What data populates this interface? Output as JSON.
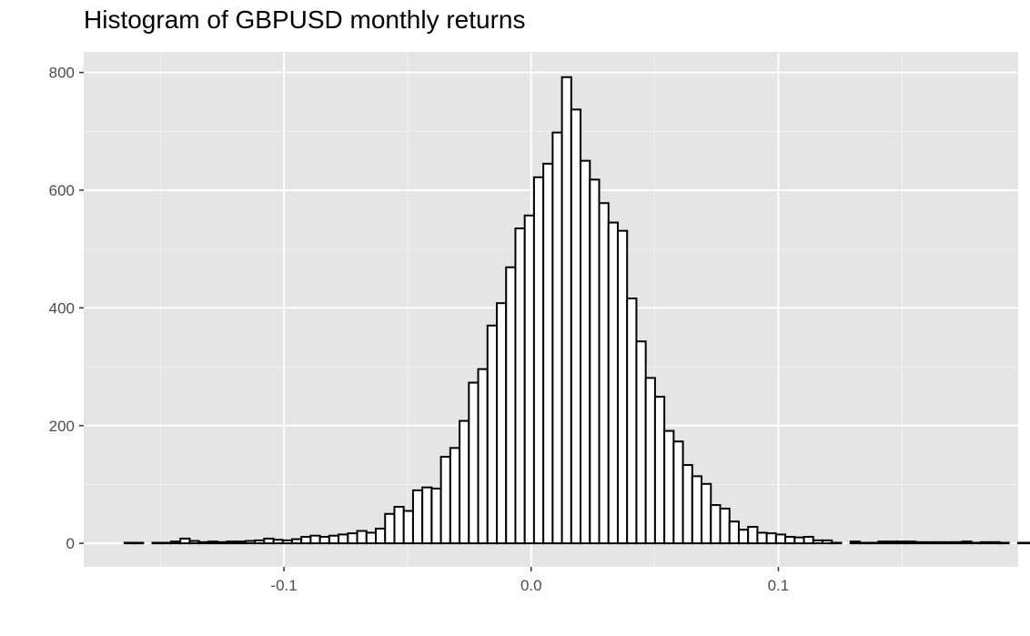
{
  "chart_data": {
    "type": "bar",
    "title": "Histogram of GBPUSD monthly returns",
    "xlabel": "",
    "ylabel": "",
    "xlim": [
      -0.181,
      0.197
    ],
    "ylim": [
      -40,
      835
    ],
    "x_ticks": [
      -0.1,
      0.0,
      0.1
    ],
    "x_tick_labels": [
      "-0.1",
      "0.0",
      "0.1"
    ],
    "y_ticks": [
      0,
      200,
      400,
      600,
      800
    ],
    "y_tick_labels": [
      "0",
      "200",
      "400",
      "600",
      "800"
    ],
    "grid": true,
    "panel_background": "#e5e5e5",
    "grid_color": "#ffffff",
    "bar_fill": "#ffffff",
    "bar_outline": "#000000",
    "bin_start": -0.1645,
    "bin_width": 0.003765,
    "values": [
      1,
      1,
      0,
      1,
      1,
      3,
      8,
      4,
      2,
      3,
      2,
      3,
      3,
      4,
      5,
      8,
      6,
      5,
      7,
      11,
      13,
      11,
      13,
      15,
      17,
      21,
      18,
      25,
      50,
      62,
      55,
      90,
      95,
      93,
      147,
      162,
      208,
      273,
      296,
      370,
      408,
      469,
      535,
      557,
      622,
      645,
      698,
      792,
      737,
      650,
      618,
      578,
      545,
      531,
      416,
      343,
      281,
      249,
      191,
      173,
      133,
      114,
      101,
      65,
      59,
      37,
      23,
      28,
      18,
      17,
      15,
      11,
      10,
      11,
      5,
      5,
      1,
      0,
      3,
      1,
      1,
      3,
      3,
      3,
      3,
      2,
      2,
      2,
      2,
      2,
      3,
      1,
      2,
      2,
      1,
      0,
      1,
      1,
      1,
      2
    ]
  }
}
